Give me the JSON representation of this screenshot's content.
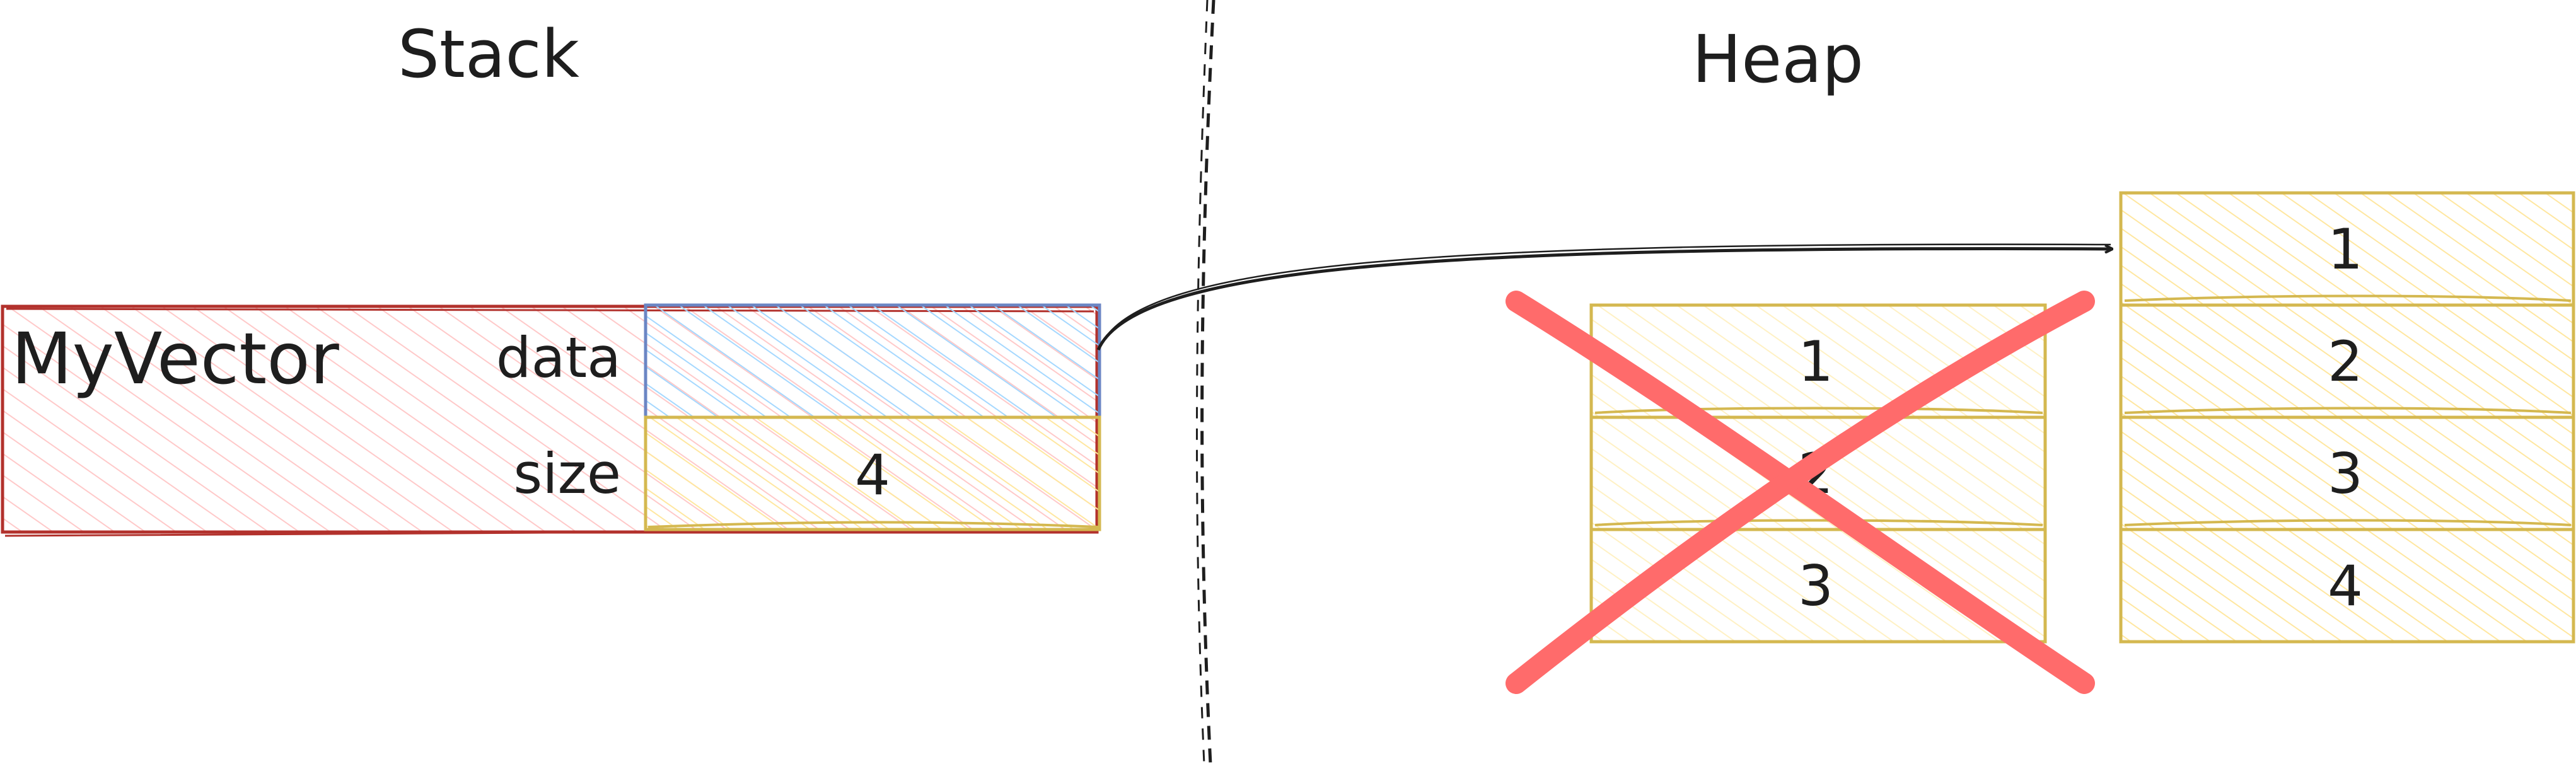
{
  "headings": {
    "stack": "Stack",
    "heap": "Heap"
  },
  "struct": {
    "name": "MyVector",
    "fields": [
      {
        "label": "data",
        "value": ""
      },
      {
        "label": "size",
        "value": "4"
      }
    ]
  },
  "old_buffer": {
    "cells": [
      "1",
      "2",
      "3"
    ],
    "crossed_out": true
  },
  "new_buffer": {
    "cells": [
      "1",
      "2",
      "3",
      "4"
    ]
  },
  "colors": {
    "struct_fill": "#ffc9c9",
    "struct_stroke": "#b2312c",
    "data_fill": "#a5d8ff",
    "data_stroke": "#6b86c4",
    "cell_fill": "#fff3bf",
    "cell_stroke": "#d4b850",
    "cross": "#ff6b6b",
    "ink": "#1e1e1e"
  }
}
